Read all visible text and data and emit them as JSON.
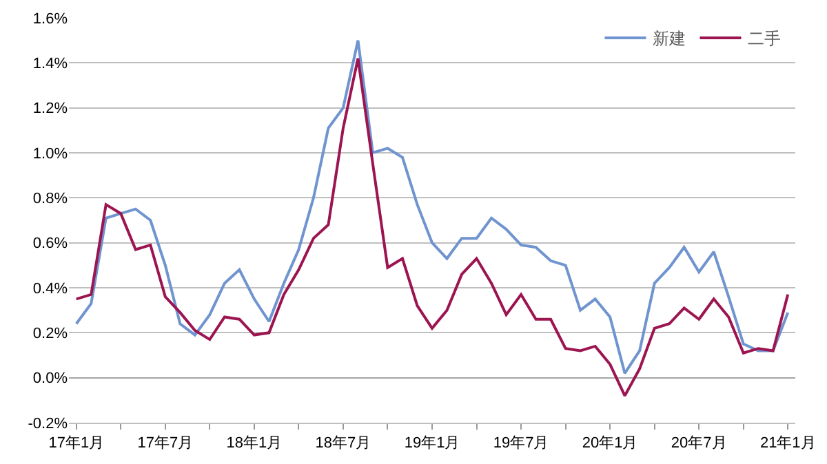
{
  "chart_data": {
    "type": "line",
    "categories": [
      "17年1月",
      null,
      null,
      null,
      null,
      null,
      "17年7月",
      null,
      null,
      null,
      null,
      null,
      "18年1月",
      null,
      null,
      null,
      null,
      null,
      "18年7月",
      null,
      null,
      null,
      null,
      null,
      "19年1月",
      null,
      null,
      null,
      null,
      null,
      "19年7月",
      null,
      null,
      null,
      null,
      null,
      "20年1月",
      null,
      null,
      null,
      null,
      null,
      "20年7月",
      null,
      null,
      null,
      null,
      null,
      "21年1月"
    ],
    "series": [
      {
        "name": "新建",
        "color": "#7094cf",
        "values": [
          0.24,
          0.33,
          0.71,
          0.73,
          0.75,
          0.7,
          0.5,
          0.24,
          0.19,
          0.28,
          0.42,
          0.48,
          0.35,
          0.25,
          0.42,
          0.57,
          0.8,
          1.11,
          1.2,
          1.5,
          1.0,
          1.02,
          0.98,
          0.77,
          0.6,
          0.53,
          0.62,
          0.62,
          0.71,
          0.66,
          0.59,
          0.58,
          0.52,
          0.5,
          0.3,
          0.35,
          0.27,
          0.02,
          0.12,
          0.42,
          0.49,
          0.58,
          0.47,
          0.56,
          0.36,
          0.15,
          0.12,
          0.12,
          0.29
        ]
      },
      {
        "name": "二手",
        "color": "#9c1450",
        "values": [
          0.35,
          0.37,
          0.77,
          0.73,
          0.57,
          0.59,
          0.36,
          0.29,
          0.21,
          0.17,
          0.27,
          0.26,
          0.19,
          0.2,
          0.37,
          0.48,
          0.62,
          0.68,
          1.11,
          1.42,
          0.95,
          0.49,
          0.53,
          0.32,
          0.22,
          0.3,
          0.46,
          0.53,
          0.42,
          0.28,
          0.37,
          0.26,
          0.26,
          0.13,
          0.12,
          0.14,
          0.06,
          -0.08,
          0.04,
          0.22,
          0.24,
          0.31,
          0.26,
          0.35,
          0.27,
          0.11,
          0.13,
          0.12,
          0.37
        ]
      }
    ],
    "ylim": [
      -0.2,
      1.6
    ],
    "yticks": [
      {
        "value": -0.2,
        "label": "-0.2%"
      },
      {
        "value": 0,
        "label": "0.0%"
      },
      {
        "value": 0.2,
        "label": "0.2%"
      },
      {
        "value": 0.4,
        "label": "0.4%"
      },
      {
        "value": 0.6,
        "label": "0.6%"
      },
      {
        "value": 0.8,
        "label": "0.8%"
      },
      {
        "value": 1.0,
        "label": "1.0%"
      },
      {
        "value": 1.2,
        "label": "1.2%"
      },
      {
        "value": 1.4,
        "label": "1.4%"
      },
      {
        "value": 1.6,
        "label": "1.6%"
      }
    ],
    "grid": "y",
    "legend": "top right",
    "marker": "none",
    "line_style": "solid"
  }
}
